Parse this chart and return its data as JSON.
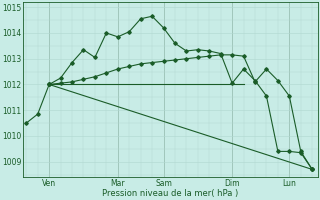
{
  "bg_color": "#c8ece6",
  "grid_color": "#b0d8d0",
  "line_color": "#1a5c28",
  "ylabel": "Pression niveau de la mer( hPa )",
  "ylim": [
    1008.4,
    1015.2
  ],
  "yticks": [
    1009,
    1010,
    1011,
    1012,
    1013,
    1014,
    1015
  ],
  "xlim": [
    -0.3,
    25.5
  ],
  "series1_x": [
    0,
    1,
    2,
    3,
    4,
    5,
    6,
    7,
    8,
    9,
    10,
    11,
    12,
    13,
    14,
    15,
    16,
    17,
    18,
    19,
    20,
    21,
    22,
    23,
    24,
    25
  ],
  "series1_y": [
    1010.5,
    1010.85,
    1012.0,
    1012.25,
    1012.85,
    1013.35,
    1013.05,
    1014.0,
    1013.85,
    1014.05,
    1014.55,
    1014.65,
    1014.2,
    1013.6,
    1013.3,
    1013.35,
    1013.3,
    1013.2,
    1012.05,
    1012.6,
    1012.15,
    1011.55,
    1009.4,
    1009.4,
    1009.35,
    1008.7
  ],
  "series2_x": [
    2,
    3,
    4,
    5,
    6,
    7,
    8,
    9,
    10,
    11,
    12,
    13,
    14,
    15,
    16,
    17,
    18,
    19,
    20,
    21,
    22,
    23,
    24,
    25
  ],
  "series2_y": [
    1012.0,
    1012.05,
    1012.1,
    1012.2,
    1012.3,
    1012.45,
    1012.6,
    1012.7,
    1012.8,
    1012.85,
    1012.9,
    1012.95,
    1013.0,
    1013.05,
    1013.1,
    1013.15,
    1013.15,
    1013.1,
    1012.1,
    1012.6,
    1012.15,
    1011.55,
    1009.4,
    1008.7
  ],
  "series3_x": [
    2,
    25
  ],
  "series3_y": [
    1012.0,
    1008.7
  ],
  "series4_x": [
    2,
    19
  ],
  "series4_y": [
    1012.0,
    1012.0
  ],
  "xtick_positions": [
    2,
    8,
    12,
    18,
    23
  ],
  "xtick_labels": [
    "Ven",
    "Mar",
    "Sam",
    "Dim",
    "Lun"
  ]
}
